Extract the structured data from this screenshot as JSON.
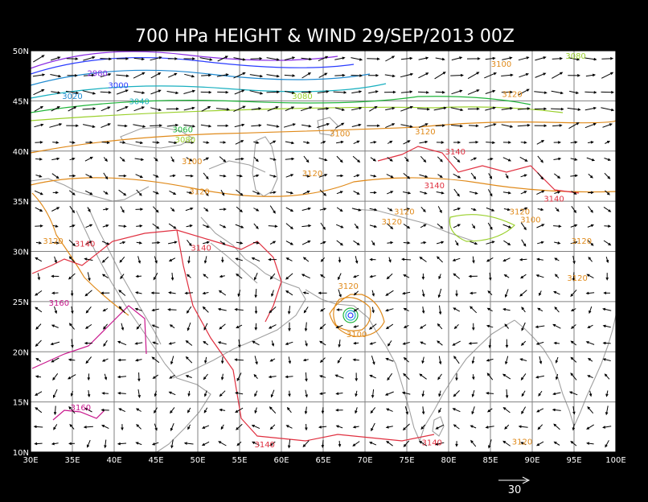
{
  "title": "700 HPa HEIGHT & WIND  29/SEP/2013 00Z",
  "map": {
    "lon_range": [
      30,
      100
    ],
    "lat_range": [
      10,
      50
    ],
    "x_ticks": [
      "30E",
      "35E",
      "40E",
      "45E",
      "50E",
      "55E",
      "60E",
      "65E",
      "70E",
      "75E",
      "80E",
      "85E",
      "90E",
      "95E",
      "100E"
    ],
    "y_ticks": [
      "10N",
      "15N",
      "20N",
      "25N",
      "30N",
      "35N",
      "40N",
      "45N",
      "50N"
    ],
    "grid_step_deg": 5,
    "background": "#ffffff",
    "page_background": "#000000",
    "coast_color": "#a0a0a0",
    "grid_color": "#808080"
  },
  "contour_labels": [
    {
      "text": "2980",
      "lon": 38.0,
      "lat": 47.8,
      "color": "#8a2be2"
    },
    {
      "text": "3000",
      "lon": 40.5,
      "lat": 46.6,
      "color": "#2a3cff"
    },
    {
      "text": "3020",
      "lon": 35.0,
      "lat": 45.5,
      "color": "#1f8ad0"
    },
    {
      "text": "3040",
      "lon": 43.0,
      "lat": 45.0,
      "color": "#19b0c0"
    },
    {
      "text": "3060",
      "lon": 48.2,
      "lat": 42.2,
      "color": "#1fb43a"
    },
    {
      "text": "3080",
      "lon": 48.5,
      "lat": 41.2,
      "color": "#9ad02c"
    },
    {
      "text": "3080",
      "lon": 62.5,
      "lat": 45.5,
      "color": "#9ad02c"
    },
    {
      "text": "3080",
      "lon": 95.2,
      "lat": 49.5,
      "color": "#9ad02c"
    },
    {
      "text": "3100",
      "lon": 86.3,
      "lat": 48.7,
      "color": "#e08a1a"
    },
    {
      "text": "3100",
      "lon": 67.0,
      "lat": 41.8,
      "color": "#e08a1a"
    },
    {
      "text": "3100",
      "lon": 49.3,
      "lat": 39.0,
      "color": "#e08a1a"
    },
    {
      "text": "3100",
      "lon": 89.8,
      "lat": 33.2,
      "color": "#e08a1a"
    },
    {
      "text": "3100",
      "lon": 69.0,
      "lat": 21.8,
      "color": "#e08a1a"
    },
    {
      "text": "3120",
      "lon": 87.6,
      "lat": 45.7,
      "color": "#e08a1a"
    },
    {
      "text": "3120",
      "lon": 77.2,
      "lat": 42.0,
      "color": "#e08a1a"
    },
    {
      "text": "3120",
      "lon": 63.7,
      "lat": 37.8,
      "color": "#e08a1a"
    },
    {
      "text": "3120",
      "lon": 50.2,
      "lat": 36.0,
      "color": "#e08a1a"
    },
    {
      "text": "3120",
      "lon": 32.7,
      "lat": 31.1,
      "color": "#e08a1a"
    },
    {
      "text": "3120",
      "lon": 73.2,
      "lat": 33.0,
      "color": "#e08a1a"
    },
    {
      "text": "3120",
      "lon": 74.7,
      "lat": 34.0,
      "color": "#e08a1a"
    },
    {
      "text": "3120",
      "lon": 88.5,
      "lat": 34.0,
      "color": "#e08a1a"
    },
    {
      "text": "3120",
      "lon": 95.9,
      "lat": 31.1,
      "color": "#e08a1a"
    },
    {
      "text": "3120",
      "lon": 68.0,
      "lat": 26.6,
      "color": "#e08a1a"
    },
    {
      "text": "3120",
      "lon": 95.4,
      "lat": 27.4,
      "color": "#e08a1a"
    },
    {
      "text": "3120",
      "lon": 88.8,
      "lat": 11.1,
      "color": "#e08a1a"
    },
    {
      "text": "3140",
      "lon": 80.8,
      "lat": 40.0,
      "color": "#e03040"
    },
    {
      "text": "3140",
      "lon": 78.3,
      "lat": 36.6,
      "color": "#e03040"
    },
    {
      "text": "3140",
      "lon": 92.6,
      "lat": 35.3,
      "color": "#e03040"
    },
    {
      "text": "3140",
      "lon": 36.5,
      "lat": 30.8,
      "color": "#e03040"
    },
    {
      "text": "3140",
      "lon": 50.4,
      "lat": 30.4,
      "color": "#e03040"
    },
    {
      "text": "3140",
      "lon": 58.0,
      "lat": 10.8,
      "color": "#e03040"
    },
    {
      "text": "3140",
      "lon": 78.0,
      "lat": 11.0,
      "color": "#e03040"
    },
    {
      "text": "3160",
      "lon": 33.4,
      "lat": 24.9,
      "color": "#c8168c"
    },
    {
      "text": "3160",
      "lon": 36.0,
      "lat": 14.5,
      "color": "#c8168c"
    }
  ],
  "legend": {
    "vector_label": "30"
  }
}
